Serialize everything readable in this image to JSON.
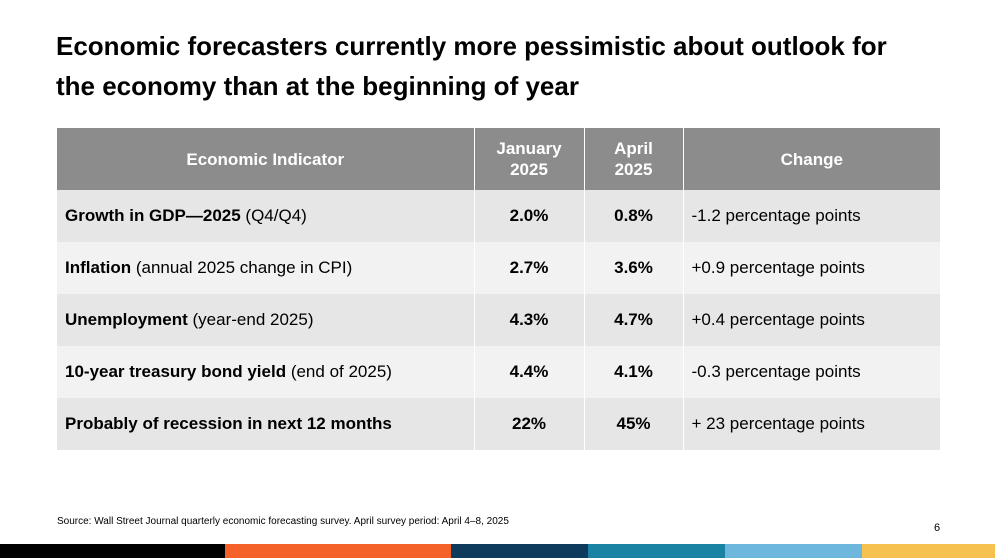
{
  "title": {
    "line1": "Economic forecasters currently more pessimistic about outlook for",
    "line2": "the economy than at the beginning of year"
  },
  "table": {
    "headers": {
      "indicator": "Economic Indicator",
      "jan_line1": "January",
      "jan_line2": "2025",
      "apr_line1": "April",
      "apr_line2": "2025",
      "change": "Change"
    },
    "rows": [
      {
        "indicator_bold": "Growth in GDP—2025",
        "indicator_rest": " (Q4/Q4)",
        "january": "2.0%",
        "april": "0.8%",
        "change": "-1.2 percentage points"
      },
      {
        "indicator_bold": "Inflation",
        "indicator_rest": " (annual 2025 change in CPI)",
        "january": "2.7%",
        "april": "3.6%",
        "change": "+0.9 percentage points"
      },
      {
        "indicator_bold": "Unemployment",
        "indicator_rest": " (year-end 2025)",
        "january": "4.3%",
        "april": "4.7%",
        "change": "+0.4 percentage points"
      },
      {
        "indicator_bold": "10-year treasury bond yield",
        "indicator_rest": " (end of 2025)",
        "january": "4.4%",
        "april": "4.1%",
        "change": "-0.3 percentage points"
      },
      {
        "indicator_bold": "Probably of recession in next 12 months",
        "indicator_rest": "",
        "january": "22%",
        "april": "45%",
        "change": "+ 23 percentage points"
      }
    ]
  },
  "source": "Source: Wall Street Journal quarterly economic forecasting survey. April survey period: April 4–8, 2025",
  "page_number": "6",
  "colors": {
    "header_bg": "#8c8c8c",
    "row_dark": "#e6e6e6",
    "row_light": "#f2f2f2",
    "bar_black": "#000000",
    "bar_orange": "#f4622a",
    "bar_navy": "#0e3b5c",
    "bar_teal": "#1a83a3",
    "bar_lightblue": "#6eb7dc",
    "bar_yellow": "#f7c14f"
  }
}
